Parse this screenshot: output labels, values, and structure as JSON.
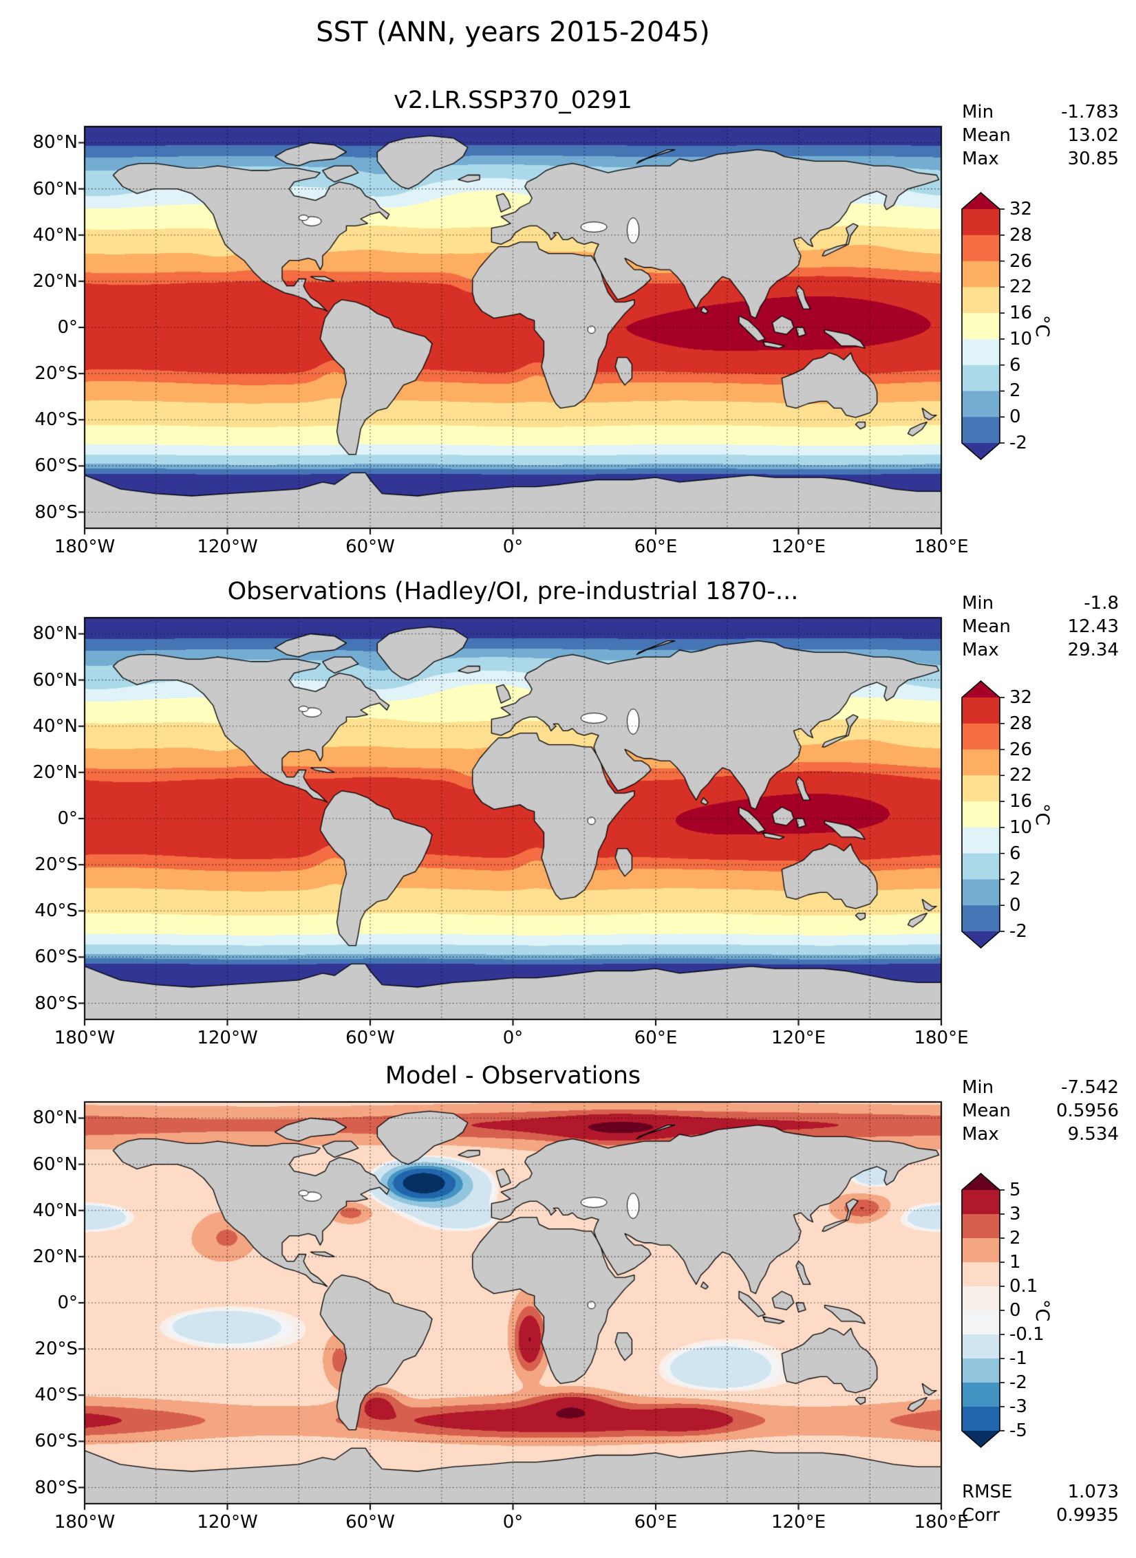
{
  "title": "SST (ANN, years 2015-2045)",
  "panels": [
    {
      "title": "v2.LR.SSP370_0291",
      "field": "sst_model",
      "stats": [
        {
          "label": "Min",
          "value": "-1.783"
        },
        {
          "label": "Mean",
          "value": "13.02"
        },
        {
          "label": "Max",
          "value": "30.85"
        }
      ],
      "colorbar": {
        "units": "°C",
        "tick_labels": [
          "32",
          "28",
          "26",
          "22",
          "16",
          "10",
          "6",
          "2",
          "0",
          "-2"
        ],
        "levels": [
          32,
          28,
          26,
          22,
          16,
          10,
          6,
          2,
          0,
          -2
        ],
        "colors": [
          "#a50026",
          "#d73027",
          "#f46d43",
          "#fdae61",
          "#fee090",
          "#ffffbf",
          "#e0f3f8",
          "#abd9e9",
          "#74add1",
          "#4575b4",
          "#313695"
        ]
      }
    },
    {
      "title": "Observations (Hadley/OI, pre-industrial 1870-...",
      "field": "sst_obs",
      "stats": [
        {
          "label": "Min",
          "value": "-1.8"
        },
        {
          "label": "Mean",
          "value": "12.43"
        },
        {
          "label": "Max",
          "value": "29.34"
        }
      ],
      "colorbar": {
        "units": "°C",
        "tick_labels": [
          "32",
          "28",
          "26",
          "22",
          "16",
          "10",
          "6",
          "2",
          "0",
          "-2"
        ],
        "levels": [
          32,
          28,
          26,
          22,
          16,
          10,
          6,
          2,
          0,
          -2
        ],
        "colors": [
          "#a50026",
          "#d73027",
          "#f46d43",
          "#fdae61",
          "#fee090",
          "#ffffbf",
          "#e0f3f8",
          "#abd9e9",
          "#74add1",
          "#4575b4",
          "#313695"
        ]
      }
    },
    {
      "title": "Model - Observations",
      "field": "sst_diff",
      "stats": [
        {
          "label": "Min",
          "value": "-7.542"
        },
        {
          "label": "Mean",
          "value": "0.5956"
        },
        {
          "label": "Max",
          "value": "9.534"
        }
      ],
      "extra_stats": [
        {
          "label": "RMSE",
          "value": "1.073"
        },
        {
          "label": "Corr",
          "value": "0.9935"
        }
      ],
      "colorbar": {
        "units": "°C",
        "tick_labels": [
          "5",
          "3",
          "2",
          "1",
          "0.1",
          "0",
          "-0.1",
          "-1",
          "-2",
          "-3",
          "-5"
        ],
        "levels": [
          5,
          3,
          2,
          1,
          0.1,
          0,
          -0.1,
          -1,
          -2,
          -3,
          -5
        ],
        "colors": [
          "#67001f",
          "#b2182b",
          "#d6604d",
          "#f4a582",
          "#fddbc7",
          "#f9efe9",
          "#f2f4f5",
          "#d1e5f0",
          "#92c5de",
          "#4393c3",
          "#2166ac",
          "#053061"
        ]
      }
    }
  ],
  "axes": {
    "lat_ticks": [
      {
        "value": 80,
        "label": "80°N"
      },
      {
        "value": 60,
        "label": "60°N"
      },
      {
        "value": 40,
        "label": "40°N"
      },
      {
        "value": 20,
        "label": "20°N"
      },
      {
        "value": 0,
        "label": "0°"
      },
      {
        "value": -20,
        "label": "20°S"
      },
      {
        "value": -40,
        "label": "40°S"
      },
      {
        "value": -60,
        "label": "60°S"
      },
      {
        "value": -80,
        "label": "80°S"
      }
    ],
    "lon_ticks": [
      {
        "value": -180,
        "label": "180°W"
      },
      {
        "value": -120,
        "label": "120°W"
      },
      {
        "value": -60,
        "label": "60°W"
      },
      {
        "value": 0,
        "label": "0°"
      },
      {
        "value": 60,
        "label": "60°E"
      },
      {
        "value": 120,
        "label": "120°E"
      },
      {
        "value": 180,
        "label": "180°E"
      }
    ]
  },
  "map_colors": {
    "land": "#c9c9c9",
    "coastline": "#000000",
    "lake": "#ffffff",
    "grid": "#000000"
  },
  "chart_data": {
    "type": "heatmap",
    "title": "SST (ANN, years 2015-2045)",
    "projection": "equirectangular lat-lon world maps",
    "x": {
      "label": "longitude",
      "range": [
        -180,
        180
      ],
      "tick_labels": [
        "180°W",
        "120°W",
        "60°W",
        "0°",
        "60°E",
        "120°E",
        "180°E"
      ]
    },
    "y": {
      "label": "latitude",
      "range": [
        -87,
        87
      ],
      "tick_labels": [
        "80°N",
        "60°N",
        "40°N",
        "20°N",
        "0°",
        "20°S",
        "40°S",
        "60°S",
        "80°S"
      ]
    },
    "grid": "dotted graticule every 20° latitude and 30° longitude",
    "legend_position": "vertical colorbar right of each map",
    "panels": [
      {
        "title": "v2.LR.SSP370_0291",
        "variable": "SST",
        "units": "°C",
        "contour_levels": [
          -2,
          0,
          2,
          6,
          10,
          16,
          22,
          26,
          28,
          32
        ],
        "stats": {
          "min": -1.783,
          "mean": 13.02,
          "max": 30.85
        },
        "zonal_mean_estimate": {
          "lat": [
            -80,
            -60,
            -40,
            -20,
            0,
            20,
            40,
            60,
            80
          ],
          "sst": [
            -1.8,
            0,
            12,
            24,
            30,
            28,
            18,
            7,
            -1
          ]
        }
      },
      {
        "title": "Observations (Hadley/OI, pre-industrial 1870-...",
        "variable": "SST",
        "units": "°C",
        "contour_levels": [
          -2,
          0,
          2,
          6,
          10,
          16,
          22,
          26,
          28,
          32
        ],
        "stats": {
          "min": -1.8,
          "mean": 12.43,
          "max": 29.34
        },
        "zonal_mean_estimate": {
          "lat": [
            -80,
            -60,
            -40,
            -20,
            0,
            20,
            40,
            60,
            80
          ],
          "sst": [
            -1.8,
            -0.5,
            11,
            23,
            29,
            27,
            17,
            6,
            -1
          ]
        }
      },
      {
        "title": "Model - Observations",
        "variable": "SST bias",
        "units": "°C",
        "contour_levels": [
          -5,
          -3,
          -2,
          -1,
          -0.1,
          0,
          0.1,
          1,
          2,
          3,
          5
        ],
        "stats": {
          "min": -7.542,
          "mean": 0.5956,
          "max": 9.534,
          "rmse": 1.073,
          "corr": 0.9935
        },
        "notable_features": [
          "cold bias below -5 °C in the subpolar North Atlantic (~50°N, 40°W)",
          "warm bias of 2-5 °C along the Southern Ocean near 50°S",
          "warm bias up to ~5 °C in eastern-boundary upwelling zones (Benguela, Peru, California)",
          "generally +0.1 to +1 °C over most tropical and subtropical oceans"
        ]
      }
    ]
  }
}
